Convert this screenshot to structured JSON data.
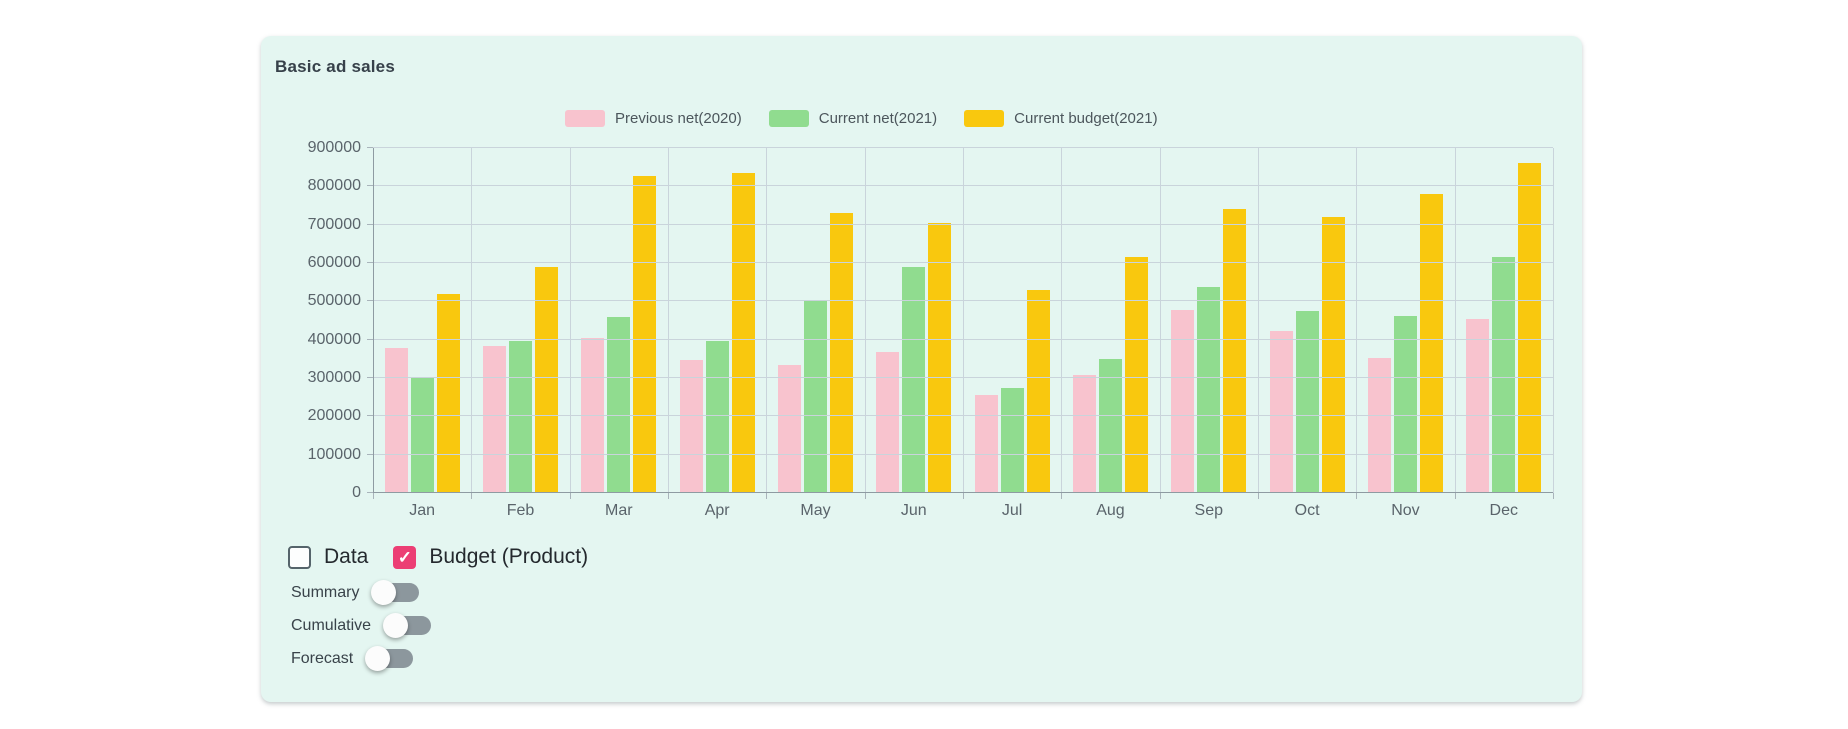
{
  "title": "Basic ad sales",
  "chart_data": {
    "type": "bar",
    "title": "Basic ad sales",
    "categories": [
      "Jan",
      "Feb",
      "Mar",
      "Apr",
      "May",
      "Jun",
      "Jul",
      "Aug",
      "Sep",
      "Oct",
      "Nov",
      "Dec"
    ],
    "series": [
      {
        "name": "Previous net(2020)",
        "color": "#F8C3CE",
        "values": [
          377000,
          383000,
          405000,
          347000,
          334000,
          369000,
          255000,
          309000,
          478000,
          423000,
          352000,
          455000
        ]
      },
      {
        "name": "Current net(2021)",
        "color": "#90DC8F",
        "values": [
          300000,
          396000,
          460000,
          396000,
          500000,
          590000,
          275000,
          350000,
          537000,
          476000,
          461000,
          616000
        ]
      },
      {
        "name": "Current budget(2021)",
        "color": "#F9C80E",
        "values": [
          520000,
          590000,
          827000,
          835000,
          731000,
          705000,
          530000,
          615000,
          741000,
          720000,
          781000,
          861000
        ]
      }
    ],
    "ylim": [
      0,
      900000
    ],
    "ytick_step": 100000,
    "yticks": [
      "0",
      "100000",
      "200000",
      "300000",
      "400000",
      "500000",
      "600000",
      "700000",
      "800000",
      "900000"
    ],
    "grid": true,
    "legend_position": "top",
    "xlabel": "",
    "ylabel": ""
  },
  "controls": {
    "checkboxes": [
      {
        "label": "Data",
        "checked": false
      },
      {
        "label": "Budget (Product)",
        "checked": true
      }
    ],
    "toggles": [
      {
        "label": "Summary",
        "on": false
      },
      {
        "label": "Cumulative",
        "on": false
      },
      {
        "label": "Forecast",
        "on": false
      }
    ]
  },
  "colors": {
    "card_bg": "#E4F6F1",
    "checkbox_accent": "#EC3E74",
    "grid_line": "#C9D4DB",
    "axis_line": "#8E9BA2",
    "tick_text": "#5A646B"
  }
}
